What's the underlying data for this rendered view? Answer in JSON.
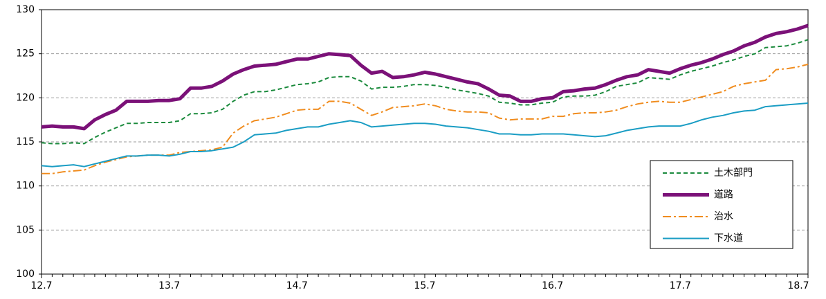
{
  "chart_data": {
    "type": "line",
    "categories": [
      "12.7",
      null,
      null,
      null,
      null,
      null,
      null,
      null,
      null,
      null,
      null,
      null,
      "13.7",
      null,
      null,
      null,
      null,
      null,
      null,
      null,
      null,
      null,
      null,
      null,
      "14.7",
      null,
      null,
      null,
      null,
      null,
      null,
      null,
      null,
      null,
      null,
      null,
      "15.7",
      null,
      null,
      null,
      null,
      null,
      null,
      null,
      null,
      null,
      null,
      null,
      "16.7",
      null,
      null,
      null,
      null,
      null,
      null,
      null,
      null,
      null,
      null,
      null,
      "17.7",
      null,
      null,
      null,
      null,
      null,
      null,
      null,
      null,
      null,
      null,
      null,
      "18.7"
    ],
    "ylim": [
      100,
      130
    ],
    "yticks": [
      100,
      105,
      110,
      115,
      120,
      125,
      130
    ],
    "grid": true,
    "legend": "lower right",
    "series": [
      {
        "name": "土木部門",
        "color": "#1a8a3c",
        "style": "dashed",
        "line_width": 2,
        "values": [
          114.9,
          114.8,
          114.8,
          114.9,
          114.8,
          115.5,
          116.1,
          116.6,
          117.1,
          117.1,
          117.2,
          117.2,
          117.2,
          117.4,
          118.2,
          118.2,
          118.3,
          118.7,
          119.6,
          120.3,
          120.7,
          120.7,
          120.9,
          121.2,
          121.5,
          121.6,
          121.8,
          122.3,
          122.4,
          122.4,
          121.9,
          121.0,
          121.2,
          121.2,
          121.3,
          121.5,
          121.5,
          121.4,
          121.2,
          120.9,
          120.7,
          120.5,
          120.2,
          119.5,
          119.4,
          119.2,
          119.2,
          119.4,
          119.5,
          120.1,
          120.2,
          120.2,
          120.3,
          120.7,
          121.3,
          121.5,
          121.7,
          122.3,
          122.2,
          122.1,
          122.6,
          123.0,
          123.3,
          123.6,
          124.0,
          124.3,
          124.7,
          125.0,
          125.7,
          125.8,
          125.9,
          126.2,
          126.6
        ]
      },
      {
        "name": "道路",
        "color": "#7b1178",
        "style": "solid",
        "line_width": 5,
        "values": [
          116.7,
          116.8,
          116.7,
          116.7,
          116.5,
          117.5,
          118.1,
          118.6,
          119.6,
          119.6,
          119.6,
          119.7,
          119.7,
          119.9,
          121.1,
          121.1,
          121.3,
          121.9,
          122.7,
          123.2,
          123.6,
          123.7,
          123.8,
          124.1,
          124.4,
          124.4,
          124.7,
          125.0,
          124.9,
          124.8,
          123.7,
          122.8,
          123.0,
          122.3,
          122.4,
          122.6,
          122.9,
          122.7,
          122.4,
          122.1,
          121.8,
          121.6,
          121.0,
          120.3,
          120.2,
          119.6,
          119.6,
          119.9,
          120.0,
          120.7,
          120.8,
          121.0,
          121.1,
          121.5,
          122.0,
          122.4,
          122.6,
          123.2,
          123.0,
          122.8,
          123.3,
          123.7,
          124.0,
          124.4,
          124.9,
          125.3,
          125.9,
          126.3,
          126.9,
          127.3,
          127.5,
          127.8,
          128.2
        ]
      },
      {
        "name": "治水",
        "color": "#f08c1e",
        "style": "dashdot",
        "line_width": 2,
        "values": [
          111.4,
          111.4,
          111.6,
          111.7,
          111.8,
          112.3,
          112.7,
          113.0,
          113.3,
          113.4,
          113.5,
          113.5,
          113.5,
          113.8,
          113.9,
          114.0,
          114.1,
          114.4,
          116.0,
          116.8,
          117.4,
          117.6,
          117.8,
          118.2,
          118.6,
          118.7,
          118.7,
          119.6,
          119.6,
          119.4,
          118.7,
          118.0,
          118.4,
          118.9,
          119.0,
          119.1,
          119.3,
          119.1,
          118.7,
          118.5,
          118.4,
          118.4,
          118.3,
          117.7,
          117.5,
          117.6,
          117.6,
          117.6,
          117.9,
          117.9,
          118.2,
          118.3,
          118.3,
          118.4,
          118.6,
          119.0,
          119.3,
          119.5,
          119.6,
          119.5,
          119.5,
          119.8,
          120.1,
          120.4,
          120.7,
          121.3,
          121.6,
          121.8,
          122.0,
          123.2,
          123.3,
          123.5,
          123.8
        ]
      },
      {
        "name": "下水道",
        "color": "#1a9dc4",
        "style": "solid",
        "line_width": 2,
        "values": [
          112.3,
          112.2,
          112.3,
          112.4,
          112.2,
          112.5,
          112.8,
          113.1,
          113.4,
          113.4,
          113.5,
          113.5,
          113.4,
          113.6,
          113.9,
          113.9,
          114.0,
          114.2,
          114.4,
          115.0,
          115.8,
          115.9,
          116.0,
          116.3,
          116.5,
          116.7,
          116.7,
          117.0,
          117.2,
          117.4,
          117.2,
          116.7,
          116.8,
          116.9,
          117.0,
          117.1,
          117.1,
          117.0,
          116.8,
          116.7,
          116.6,
          116.4,
          116.2,
          115.9,
          115.9,
          115.8,
          115.8,
          115.9,
          115.9,
          115.9,
          115.8,
          115.7,
          115.6,
          115.7,
          116.0,
          116.3,
          116.5,
          116.7,
          116.8,
          116.8,
          116.8,
          117.1,
          117.5,
          117.8,
          118.0,
          118.3,
          118.5,
          118.6,
          119.0,
          119.1,
          119.2,
          119.3,
          119.4
        ]
      }
    ]
  }
}
